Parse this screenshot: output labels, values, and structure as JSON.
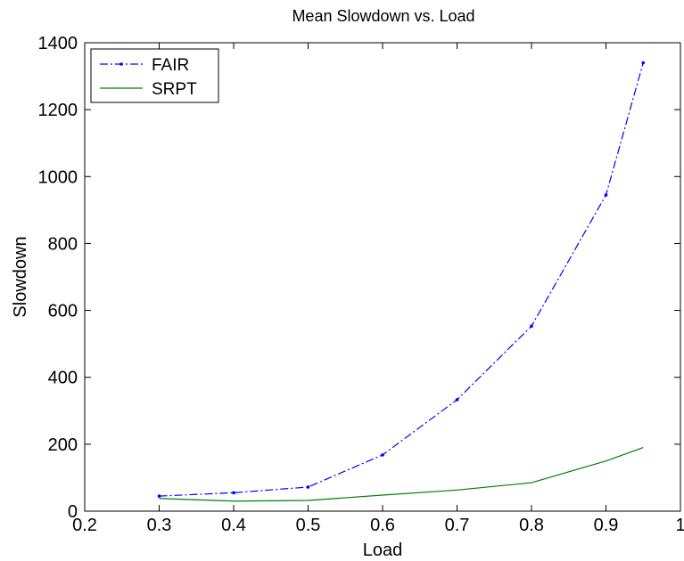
{
  "chart_data": {
    "type": "line",
    "title": "Mean Slowdown vs. Load",
    "xlabel": "Load",
    "ylabel": "Slowdown",
    "xlim": [
      0.2,
      1
    ],
    "ylim": [
      0,
      1400
    ],
    "x_ticks": [
      "0.2",
      "0.3",
      "0.4",
      "0.5",
      "0.6",
      "0.7",
      "0.8",
      "0.9",
      "1"
    ],
    "y_ticks": [
      "0",
      "200",
      "400",
      "600",
      "800",
      "1000",
      "1200",
      "1400"
    ],
    "grid": false,
    "legend_position": "top-left",
    "series": [
      {
        "name": "FAIR",
        "color": "#0000ff",
        "style": "dash-dot with point markers",
        "x": [
          0.3,
          0.4,
          0.5,
          0.6,
          0.7,
          0.8,
          0.9,
          0.95
        ],
        "y": [
          45,
          55,
          72,
          168,
          333,
          553,
          945,
          1340
        ]
      },
      {
        "name": "SRPT",
        "color": "#008000",
        "style": "solid",
        "x": [
          0.3,
          0.4,
          0.5,
          0.6,
          0.7,
          0.8,
          0.9,
          0.95
        ],
        "y": [
          38,
          30,
          32,
          48,
          63,
          85,
          150,
          190
        ]
      }
    ]
  }
}
